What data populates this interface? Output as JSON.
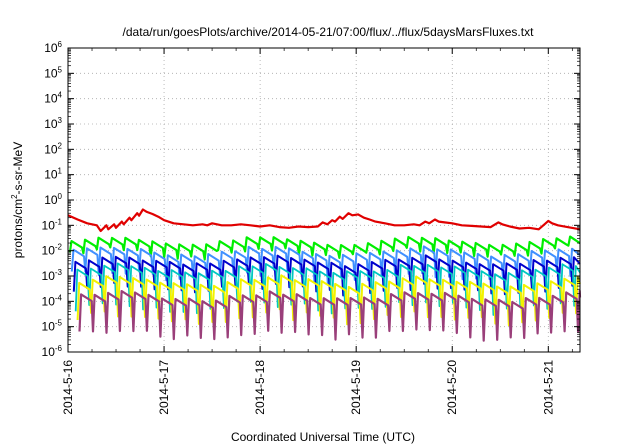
{
  "chart_data": {
    "type": "line",
    "title": "/data/run/goesPlots/archive/2014-05-21/07:00/flux/../flux/5daysMarsFluxes.txt",
    "xlabel": "Coordinated Universal Time (UTC)",
    "ylabel_parts": [
      "protons/cm",
      "2",
      "-s-sr-MeV"
    ],
    "xlim_days": [
      0,
      5.33
    ],
    "ylim": [
      1e-06,
      1000000.0
    ],
    "y_scale": "log",
    "grid": true,
    "x_ticks": [
      {
        "day": 0,
        "label": "2014-5-16"
      },
      {
        "day": 1,
        "label": "2014-5-17"
      },
      {
        "day": 2,
        "label": "2014-5-18"
      },
      {
        "day": 3,
        "label": "2014-5-19"
      },
      {
        "day": 4,
        "label": "2014-5-20"
      },
      {
        "day": 5,
        "label": "2014-5-21"
      }
    ],
    "y_ticks": [
      {
        "exp": -6,
        "mant": "10",
        "sup": "-6"
      },
      {
        "exp": -5,
        "mant": "10",
        "sup": "-5"
      },
      {
        "exp": -4,
        "mant": "10",
        "sup": "-4"
      },
      {
        "exp": -3,
        "mant": "10",
        "sup": "-3"
      },
      {
        "exp": -2,
        "mant": "10",
        "sup": "-2"
      },
      {
        "exp": -1,
        "mant": "10",
        "sup": "-1"
      },
      {
        "exp": 0,
        "mant": "10",
        "sup": "0"
      },
      {
        "exp": 1,
        "mant": "10",
        "sup": "1"
      },
      {
        "exp": 2,
        "mant": "10",
        "sup": "2"
      },
      {
        "exp": 3,
        "mant": "10",
        "sup": "3"
      },
      {
        "exp": 4,
        "mant": "10",
        "sup": "4"
      },
      {
        "exp": 5,
        "mant": "10",
        "sup": "5"
      },
      {
        "exp": 6,
        "mant": "10",
        "sup": "6"
      }
    ],
    "series": [
      {
        "color": "#e00000",
        "width": 2.2,
        "points": [
          [
            0,
            0.25
          ],
          [
            0.1,
            0.17
          ],
          [
            0.2,
            0.12
          ],
          [
            0.3,
            0.1
          ],
          [
            0.34,
            0.06
          ],
          [
            0.4,
            0.1
          ],
          [
            0.42,
            0.07
          ],
          [
            0.48,
            0.11
          ],
          [
            0.5,
            0.08
          ],
          [
            0.56,
            0.14
          ],
          [
            0.58,
            0.11
          ],
          [
            0.64,
            0.2
          ],
          [
            0.66,
            0.16
          ],
          [
            0.72,
            0.3
          ],
          [
            0.74,
            0.24
          ],
          [
            0.78,
            0.42
          ],
          [
            0.82,
            0.34
          ],
          [
            0.88,
            0.28
          ],
          [
            0.94,
            0.22
          ],
          [
            1.0,
            0.16
          ],
          [
            1.1,
            0.12
          ],
          [
            1.2,
            0.11
          ],
          [
            1.3,
            0.1
          ],
          [
            1.4,
            0.11
          ],
          [
            1.45,
            0.1
          ],
          [
            1.5,
            0.12
          ],
          [
            1.55,
            0.11
          ],
          [
            1.6,
            0.1
          ],
          [
            1.7,
            0.1
          ],
          [
            1.8,
            0.11
          ],
          [
            1.9,
            0.1
          ],
          [
            2.0,
            0.09
          ],
          [
            2.1,
            0.1
          ],
          [
            2.2,
            0.085
          ],
          [
            2.3,
            0.08
          ],
          [
            2.4,
            0.09
          ],
          [
            2.5,
            0.085
          ],
          [
            2.6,
            0.09
          ],
          [
            2.65,
            0.13
          ],
          [
            2.7,
            0.11
          ],
          [
            2.75,
            0.16
          ],
          [
            2.78,
            0.14
          ],
          [
            2.83,
            0.22
          ],
          [
            2.86,
            0.18
          ],
          [
            2.92,
            0.3
          ],
          [
            2.96,
            0.25
          ],
          [
            3.02,
            0.27
          ],
          [
            3.08,
            0.2
          ],
          [
            3.14,
            0.17
          ],
          [
            3.2,
            0.14
          ],
          [
            3.3,
            0.12
          ],
          [
            3.4,
            0.1
          ],
          [
            3.5,
            0.1
          ],
          [
            3.6,
            0.11
          ],
          [
            3.66,
            0.1
          ],
          [
            3.72,
            0.14
          ],
          [
            3.76,
            0.12
          ],
          [
            3.82,
            0.17
          ],
          [
            3.86,
            0.14
          ],
          [
            3.92,
            0.13
          ],
          [
            4.0,
            0.12
          ],
          [
            4.1,
            0.1
          ],
          [
            4.2,
            0.095
          ],
          [
            4.3,
            0.09
          ],
          [
            4.4,
            0.085
          ],
          [
            4.48,
            0.13
          ],
          [
            4.52,
            0.11
          ],
          [
            4.6,
            0.09
          ],
          [
            4.7,
            0.075
          ],
          [
            4.8,
            0.08
          ],
          [
            4.9,
            0.07
          ],
          [
            4.96,
            0.11
          ],
          [
            5.0,
            0.15
          ],
          [
            5.04,
            0.12
          ],
          [
            5.1,
            0.1
          ],
          [
            5.2,
            0.085
          ],
          [
            5.33,
            0.07
          ]
        ]
      },
      {
        "color": "#00ee00",
        "width": 2.2,
        "gen": {
          "base": 0.015,
          "dip": 0.55,
          "n": 38,
          "wiggle": 0.15
        }
      },
      {
        "color": "#4090ff",
        "width": 2.0,
        "gen": {
          "base": 0.006,
          "dip": 0.18,
          "n": 38,
          "wiggle": 0.3
        }
      },
      {
        "color": "#0000cc",
        "width": 2.0,
        "gen": {
          "base": 0.0025,
          "dip": 0.12,
          "n": 38,
          "wiggle": 0.3
        }
      },
      {
        "color": "#00c8c0",
        "width": 1.8,
        "gen": {
          "base": 0.0012,
          "dip": 0.05,
          "n": 38,
          "wiggle": 0.35
        }
      },
      {
        "color": "#f2f200",
        "width": 2.0,
        "gen": {
          "base": 0.0004,
          "dip": 0.06,
          "n": 38,
          "wiggle": 0.4
        }
      },
      {
        "color": "#9a3f7a",
        "width": 2.2,
        "gen": {
          "base": 0.0001,
          "dip": 0.05,
          "n": 38,
          "wiggle": 0.4
        }
      }
    ]
  }
}
